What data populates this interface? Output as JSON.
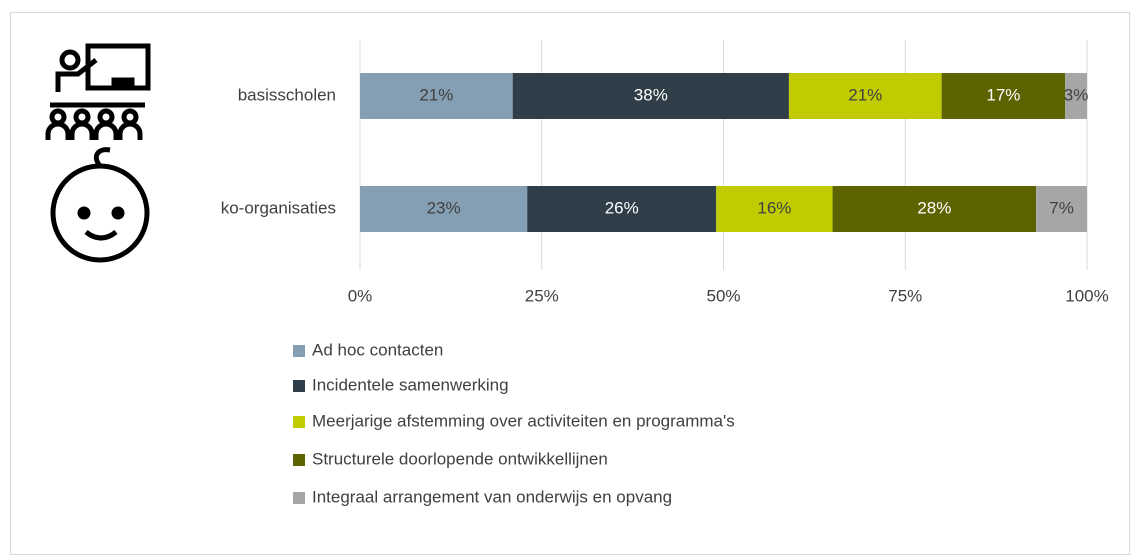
{
  "chart_data": {
    "type": "stacked_bar_horizontal",
    "categories": [
      "basisscholen",
      "ko-organisaties"
    ],
    "series": [
      {
        "name": "Ad hoc contacten",
        "color": "#849fb4",
        "values": [
          21,
          23
        ],
        "value_labels": [
          "21%",
          "23%"
        ]
      },
      {
        "name": "Incidentele samenwerking",
        "color": "#2f3e48",
        "values": [
          38,
          26
        ],
        "value_labels": [
          "38%",
          "26%"
        ]
      },
      {
        "name": "Meerjarige afstemming over activiteiten en programma's",
        "color": "#c0cc00",
        "values": [
          21,
          16
        ],
        "value_labels": [
          "21%",
          "16%"
        ]
      },
      {
        "name": "Structurele doorlopende ontwikkellijnen",
        "color": "#5d6300",
        "values": [
          17,
          28
        ],
        "value_labels": [
          "17%",
          "28%"
        ]
      },
      {
        "name": "Integraal arrangement van onderwijs en opvang",
        "color": "#a6a6a6",
        "values": [
          3,
          7
        ],
        "value_labels": [
          "3%",
          "7%"
        ]
      }
    ],
    "xlim": [
      0,
      100
    ],
    "xticks": [
      {
        "value": 0,
        "label": "0%"
      },
      {
        "value": 25,
        "label": "25%"
      },
      {
        "value": 50,
        "label": "50%"
      },
      {
        "value": 75,
        "label": "75%"
      },
      {
        "value": 100,
        "label": "100%"
      }
    ],
    "grid": true,
    "legend": "bottom"
  }
}
